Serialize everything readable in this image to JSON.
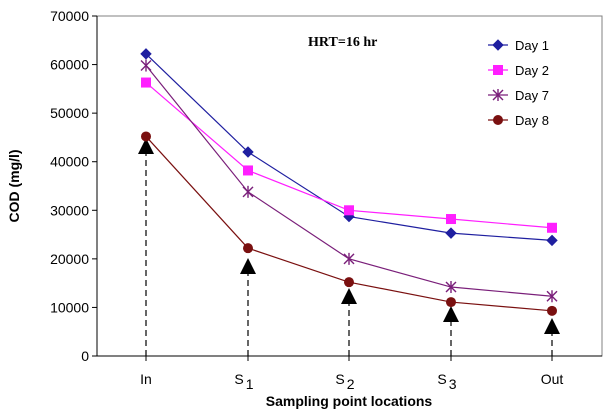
{
  "chart_data": {
    "type": "line",
    "title": "",
    "annotation": "HRT=16 hr",
    "xlabel": "Sampling point locations",
    "ylabel": "COD (mg/l)",
    "categories": [
      "In",
      "S1",
      "S2",
      "S3",
      "Out"
    ],
    "category_labels": [
      {
        "main": "In",
        "sub": ""
      },
      {
        "main": "S",
        "sub": "1"
      },
      {
        "main": "S",
        "sub": "2"
      },
      {
        "main": "S",
        "sub": "3"
      },
      {
        "main": "Out",
        "sub": ""
      }
    ],
    "ylim": [
      0,
      70000
    ],
    "yticks": [
      0,
      10000,
      20000,
      30000,
      40000,
      50000,
      60000,
      70000
    ],
    "ytick_labels": [
      "0",
      "10000",
      "20000",
      "30000",
      "40000",
      "50000",
      "60000",
      "70000"
    ],
    "grid": false,
    "legend_position": "top-right",
    "series": [
      {
        "name": "Day 1",
        "marker": "diamond",
        "color": "#1F1FA0",
        "values": [
          62200,
          42000,
          28700,
          25300,
          23800
        ]
      },
      {
        "name": "Day 2",
        "marker": "square",
        "color": "#FF1FFF",
        "values": [
          56300,
          38200,
          30000,
          28200,
          26400
        ]
      },
      {
        "name": "Day 7",
        "marker": "star",
        "color": "#7A1F7A",
        "values": [
          59800,
          33800,
          20000,
          14200,
          12300
        ]
      },
      {
        "name": "Day 8",
        "marker": "circle",
        "color": "#7A1010",
        "values": [
          45200,
          22200,
          15200,
          11100,
          9300
        ]
      }
    ],
    "sampling_arrows": {
      "description_marker": "upward-triangle-arrow",
      "color": "#000000"
    }
  }
}
